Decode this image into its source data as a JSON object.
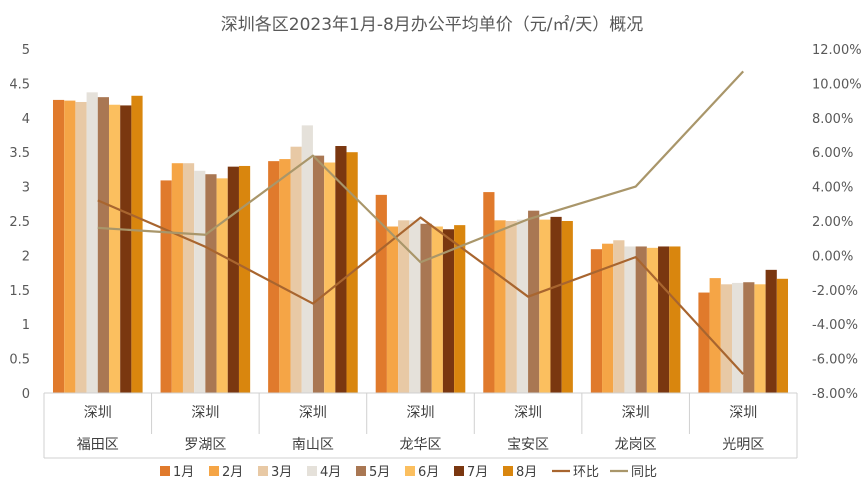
{
  "chart_data": {
    "type": "bar",
    "title": "深圳各区2023年1月-8月办公平均单价（元/㎡/天）概况",
    "group_label": "深圳",
    "categories": [
      "福田区",
      "罗湖区",
      "南山区",
      "龙华区",
      "宝安区",
      "龙岗区",
      "光明区"
    ],
    "series": [
      {
        "name": "1月",
        "color": "#E07A2C",
        "values": [
          4.26,
          3.09,
          3.37,
          2.88,
          2.92,
          2.09,
          1.46
        ]
      },
      {
        "name": "2月",
        "color": "#F5A546",
        "values": [
          4.25,
          3.34,
          3.4,
          2.42,
          2.51,
          2.17,
          1.67
        ]
      },
      {
        "name": "3月",
        "color": "#E8C9A5",
        "values": [
          4.23,
          3.34,
          3.58,
          2.51,
          2.5,
          2.22,
          1.58
        ]
      },
      {
        "name": "4月",
        "color": "#E5E1DA",
        "values": [
          4.37,
          3.23,
          3.89,
          2.51,
          2.52,
          2.13,
          1.6
        ]
      },
      {
        "name": "5月",
        "color": "#A97753",
        "values": [
          4.3,
          3.18,
          3.45,
          2.46,
          2.65,
          2.13,
          1.61
        ]
      },
      {
        "name": "6月",
        "color": "#FBBF5F",
        "values": [
          4.19,
          3.12,
          3.35,
          2.42,
          2.52,
          2.11,
          1.58
        ]
      },
      {
        "name": "7月",
        "color": "#7A3710",
        "values": [
          4.18,
          3.29,
          3.59,
          2.38,
          2.56,
          2.13,
          1.79
        ]
      },
      {
        "name": "8月",
        "color": "#D9860E",
        "values": [
          4.32,
          3.3,
          3.5,
          2.44,
          2.5,
          2.13,
          1.66
        ]
      }
    ],
    "lines": [
      {
        "name": "环比",
        "color": "#A8652F",
        "values": [
          3.2,
          0.5,
          -2.8,
          2.2,
          -2.4,
          -0.1,
          -6.9
        ]
      },
      {
        "name": "同比",
        "color": "#A9966A",
        "values": [
          1.6,
          1.2,
          5.8,
          -0.4,
          2.1,
          4.0,
          10.7
        ]
      }
    ],
    "y_left": {
      "min": 0,
      "max": 5,
      "step": 0.5
    },
    "y_right": {
      "min": -8,
      "max": 12,
      "step": 2,
      "format": "percent_2dp"
    },
    "legend_position": "bottom",
    "grid": false
  }
}
